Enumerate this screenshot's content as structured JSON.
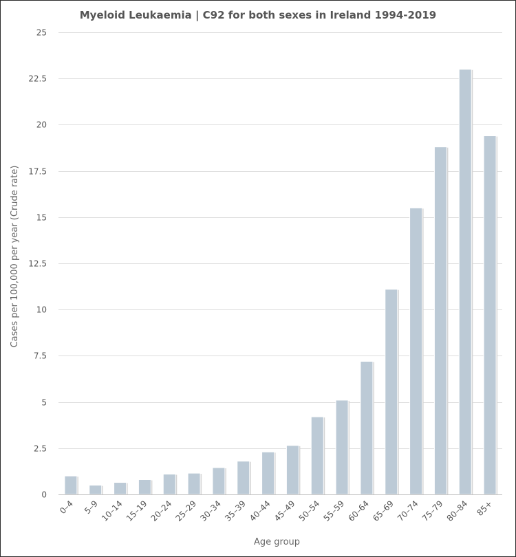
{
  "chart_data": {
    "type": "bar",
    "title": "Myeloid Leukaemia | C92 for both sexes in Ireland 1994-2019",
    "xlabel": "Age group",
    "ylabel": "Cases per 100,000 per year (Crude rate)",
    "categories": [
      "0–4",
      "5–9",
      "10–14",
      "15–19",
      "20–24",
      "25–29",
      "30–34",
      "35–39",
      "40–44",
      "45–49",
      "50–54",
      "55–59",
      "60–64",
      "65–69",
      "70–74",
      "75–79",
      "80–84",
      "85+"
    ],
    "values": [
      1.0,
      0.5,
      0.65,
      0.8,
      1.1,
      1.15,
      1.45,
      1.8,
      2.3,
      2.65,
      4.2,
      5.1,
      7.2,
      11.1,
      15.5,
      18.8,
      23.0,
      19.4
    ],
    "ylim": [
      0,
      25
    ],
    "yticks": [
      0,
      2.5,
      5,
      7.5,
      10,
      12.5,
      15,
      17.5,
      20,
      22.5,
      25
    ],
    "ytick_labels": [
      "0",
      "2.5",
      "5",
      "7.5",
      "10",
      "12.5",
      "15",
      "17.5",
      "20",
      "22.5",
      "25"
    ],
    "grid": true,
    "legend": "none",
    "bar_color": "#bccad6"
  }
}
